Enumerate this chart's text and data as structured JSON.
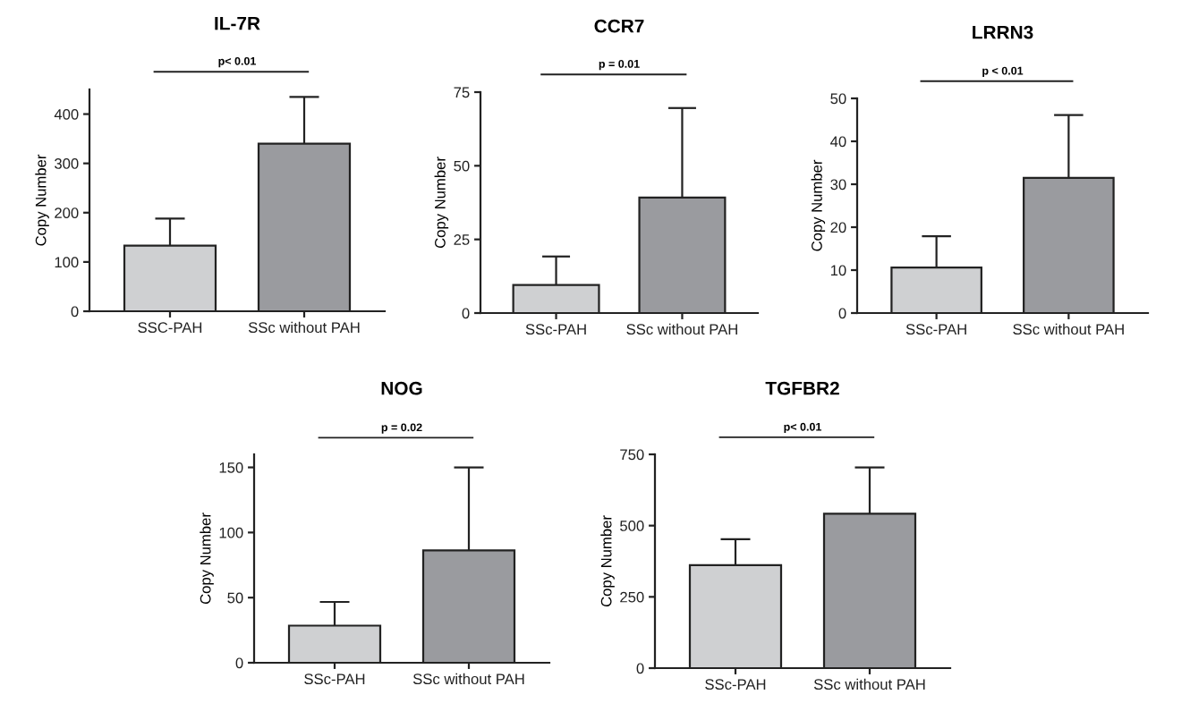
{
  "chart_data": [
    {
      "type": "bar",
      "title": "IL-7R",
      "ylabel": "Copy Number",
      "categories": [
        "SSC-PAH",
        "SSc without PAH"
      ],
      "values": [
        133,
        340
      ],
      "colors": [
        "#cfd0d2",
        "#9a9b9f"
      ],
      "errors": [
        [
          133,
          188
        ],
        [
          340,
          435
        ]
      ],
      "ylim": [
        0,
        450
      ],
      "yticks": [
        0,
        100,
        200,
        300,
        400
      ],
      "annotations": [
        "p< 0.01"
      ]
    },
    {
      "type": "bar",
      "title": "CCR7",
      "ylabel": "Copy Number",
      "categories": [
        "SSc-PAH",
        "SSc without PAH"
      ],
      "values": [
        9.5,
        39.2
      ],
      "colors": [
        "#cfd0d2",
        "#9a9b9f"
      ],
      "errors": [
        [
          9.5,
          19.2
        ],
        [
          39.2,
          69.6
        ]
      ],
      "ylim": [
        0,
        75
      ],
      "yticks": [
        0,
        25,
        50,
        75
      ],
      "annotations": [
        "p = 0.01"
      ]
    },
    {
      "type": "bar",
      "title": "LRRN3",
      "ylabel": "Copy Number",
      "categories": [
        "SSc-PAH",
        "SSc without PAH"
      ],
      "values": [
        10.6,
        31.5
      ],
      "colors": [
        "#cfd0d2",
        "#9a9b9f"
      ],
      "errors": [
        [
          10.6,
          17.9
        ],
        [
          31.5,
          46.1
        ]
      ],
      "ylim": [
        0,
        50
      ],
      "yticks": [
        0,
        10,
        20,
        30,
        40,
        50
      ],
      "annotations": [
        "p < 0.01"
      ]
    },
    {
      "type": "bar",
      "title": "NOG",
      "ylabel": "Copy Number",
      "categories": [
        "SSc-PAH",
        "SSc without PAH"
      ],
      "values": [
        28.5,
        86.3
      ],
      "colors": [
        "#cfd0d2",
        "#9a9b9f"
      ],
      "errors": [
        [
          28.5,
          46.7
        ],
        [
          86.3,
          150
        ]
      ],
      "ylim": [
        0,
        160
      ],
      "yticks": [
        0,
        50,
        100,
        150
      ],
      "annotations": [
        "p = 0.02"
      ]
    },
    {
      "type": "bar",
      "title": "TGFBR2",
      "ylabel": "Copy Number",
      "categories": [
        "SSc-PAH",
        "SSc without PAH"
      ],
      "values": [
        361,
        542
      ],
      "colors": [
        "#cfd0d2",
        "#9a9b9f"
      ],
      "errors": [
        [
          361,
          452
        ],
        [
          542,
          704
        ]
      ],
      "ylim": [
        0,
        750
      ],
      "yticks": [
        0,
        250,
        500,
        750
      ],
      "annotations": [
        "p< 0.01"
      ]
    }
  ]
}
